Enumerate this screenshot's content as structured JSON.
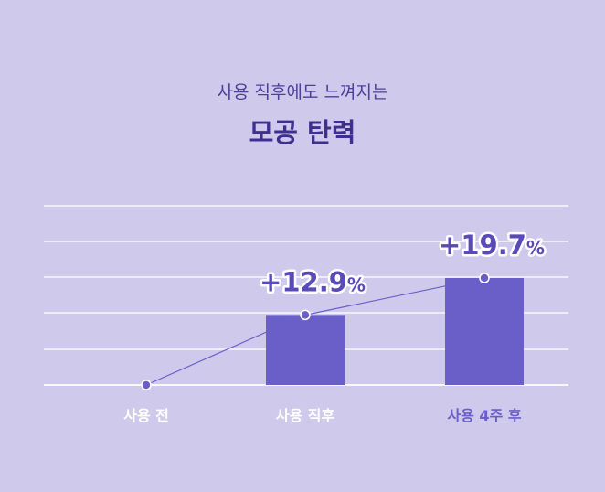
{
  "header": {
    "subtitle": "사용 직후에도 느껴지는",
    "title": "모공 탄력"
  },
  "chart_data": {
    "type": "bar",
    "categories": [
      "사용 전",
      "사용 직후",
      "사용 4주 후"
    ],
    "values": [
      0,
      12.9,
      19.7
    ],
    "data_labels": [
      "",
      "+12.9%",
      "+19.7%"
    ],
    "ylim": [
      0,
      25
    ],
    "grid": true,
    "colors": {
      "bar": "#6a5ec8",
      "line": "#6a5ec8",
      "gridline": "#ffffff",
      "category_text": "#ffffff",
      "category_text_highlight": "#6a5ec8"
    }
  }
}
